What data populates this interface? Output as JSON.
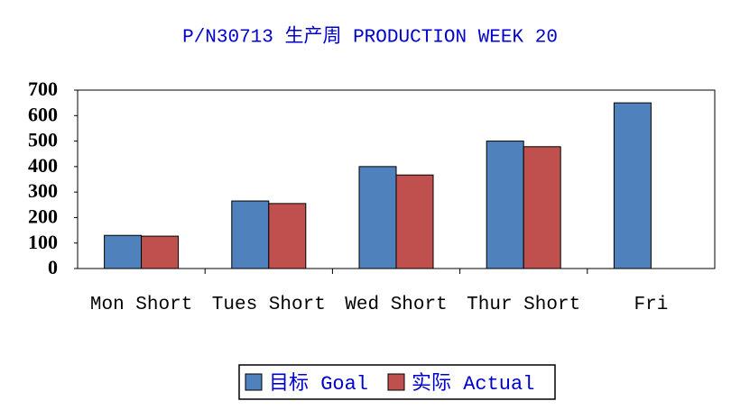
{
  "chart_data": {
    "type": "bar",
    "title": "P/N30713 生产周 PRODUCTION WEEK 20",
    "categories": [
      "Mon Short",
      "Tues Short",
      "Wed Short",
      "Thur Short",
      "Fri"
    ],
    "series": [
      {
        "name": "目标 Goal",
        "color": "#4f81bd",
        "values": [
          130,
          265,
          400,
          500,
          650
        ]
      },
      {
        "name": "实际 Actual",
        "color": "#c0504d",
        "values": [
          127,
          255,
          367,
          478,
          null
        ]
      }
    ],
    "ylim": [
      0,
      700
    ],
    "yticks": [
      0,
      100,
      200,
      300,
      400,
      500,
      600,
      700
    ],
    "grid": false,
    "legend": "bottom"
  }
}
